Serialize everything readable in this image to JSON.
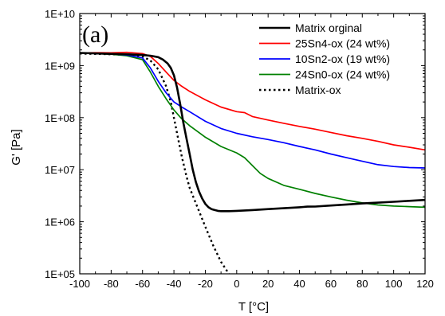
{
  "chart_data": {
    "type": "line",
    "panel_label": "(a)",
    "xlabel": "T [°C]",
    "ylabel": "G' [Pa]",
    "xlim": [
      -100,
      120
    ],
    "ylim": [
      100000,
      10000000000
    ],
    "yscale": "log",
    "x_ticks": [
      -100,
      -80,
      -60,
      -40,
      -20,
      0,
      20,
      40,
      60,
      80,
      100,
      120
    ],
    "x_tick_labels": [
      "-100",
      "-80",
      "-60",
      "-40",
      "-20",
      "0",
      "20",
      "40",
      "60",
      "80",
      "100",
      "120"
    ],
    "y_ticks": [
      100000,
      1000000,
      10000000,
      100000000,
      1000000000,
      10000000000
    ],
    "y_tick_labels": [
      "1E+05",
      "1E+06",
      "1E+07",
      "1E+08",
      "1E+09",
      "1E+10"
    ],
    "legend_position": "top-right",
    "grid": false,
    "series": [
      {
        "name": "Matrix orginal",
        "color": "#000000",
        "dash": "solid",
        "width": "thick",
        "x": [
          -100,
          -80,
          -70,
          -60,
          -55,
          -50,
          -47,
          -44,
          -42,
          -40,
          -38,
          -36,
          -34,
          -32,
          -30,
          -28,
          -26,
          -24,
          -22,
          -20,
          -18,
          -16,
          -14,
          -12,
          -10,
          -5,
          0,
          10,
          20,
          30,
          40,
          45,
          50,
          60,
          70,
          80,
          90,
          100,
          110,
          120
        ],
        "y": [
          1750000000,
          1680000000,
          1650000000,
          1600000000,
          1550000000,
          1450000000,
          1300000000,
          1100000000,
          900000000,
          650000000,
          380000000,
          180000000,
          80000000,
          40000000,
          20000000,
          10000000,
          5800000,
          3800000,
          2800000,
          2200000,
          1900000,
          1750000,
          1680000,
          1620000,
          1600000,
          1600000,
          1620000,
          1680000,
          1750000,
          1820000,
          1900000,
          1950000,
          1960000,
          2050000,
          2150000,
          2250000,
          2330000,
          2420000,
          2520000,
          2620000
        ]
      },
      {
        "name": "25Sn4-ox (24 wt%)",
        "color": "#ff0000",
        "dash": "solid",
        "width": "normal",
        "x": [
          -100,
          -90,
          -80,
          -70,
          -60,
          -55,
          -50,
          -45,
          -40,
          -35,
          -30,
          -20,
          -10,
          0,
          5,
          10,
          20,
          30,
          40,
          50,
          60,
          70,
          80,
          90,
          100,
          110,
          120
        ],
        "y": [
          1750000000,
          1770000000,
          1760000000,
          1800000000,
          1700000000,
          1500000000,
          1100000000,
          750000000,
          520000000,
          400000000,
          320000000,
          220000000,
          160000000,
          130000000,
          125000000,
          105000000,
          90000000,
          78000000,
          68000000,
          60000000,
          52000000,
          45000000,
          40000000,
          35000000,
          30000000,
          27000000,
          24000000
        ]
      },
      {
        "name": "10Sn2-ox (19 wt%)",
        "color": "#0000ff",
        "dash": "solid",
        "width": "normal",
        "x": [
          -100,
          -90,
          -80,
          -70,
          -60,
          -55,
          -50,
          -45,
          -40,
          -35,
          -30,
          -20,
          -10,
          0,
          10,
          20,
          30,
          40,
          50,
          60,
          70,
          80,
          90,
          100,
          110,
          120
        ],
        "y": [
          1750000000,
          1700000000,
          1680000000,
          1600000000,
          1400000000,
          900000000,
          500000000,
          300000000,
          200000000,
          160000000,
          130000000,
          85000000,
          62000000,
          50000000,
          43000000,
          38000000,
          33000000,
          28000000,
          24000000,
          20000000,
          17000000,
          14500000,
          12500000,
          11500000,
          11000000,
          10800000
        ]
      },
      {
        "name": "24Sn0-ox (24 wt%)",
        "color": "#008000",
        "dash": "solid",
        "width": "normal",
        "x": [
          -100,
          -90,
          -80,
          -70,
          -60,
          -55,
          -50,
          -45,
          -40,
          -35,
          -30,
          -20,
          -10,
          0,
          5,
          10,
          15,
          20,
          30,
          40,
          50,
          60,
          70,
          80,
          90,
          100,
          110,
          120
        ],
        "y": [
          1750000000,
          1700000000,
          1650000000,
          1550000000,
          1300000000,
          750000000,
          400000000,
          230000000,
          140000000,
          95000000,
          70000000,
          42000000,
          28000000,
          21000000,
          17000000,
          12000000,
          8500000,
          6800000,
          5000000,
          4200000,
          3500000,
          3000000,
          2600000,
          2300000,
          2100000,
          2000000,
          1950000,
          1900000
        ]
      },
      {
        "name": "Matrix-ox",
        "color": "#000000",
        "dash": "dotted",
        "width": "thick",
        "x": [
          -100,
          -80,
          -70,
          -60,
          -55,
          -50,
          -45,
          -42,
          -40,
          -38,
          -35,
          -32,
          -30,
          -25,
          -20,
          -15,
          -10,
          -5
        ],
        "y": [
          1700000000,
          1650000000,
          1600000000,
          1500000000,
          1250000000,
          850000000,
          400000000,
          200000000,
          100000000,
          50000000,
          18000000,
          7500000,
          4500000,
          1900000,
          800000,
          350000,
          170000,
          100000
        ]
      }
    ]
  }
}
